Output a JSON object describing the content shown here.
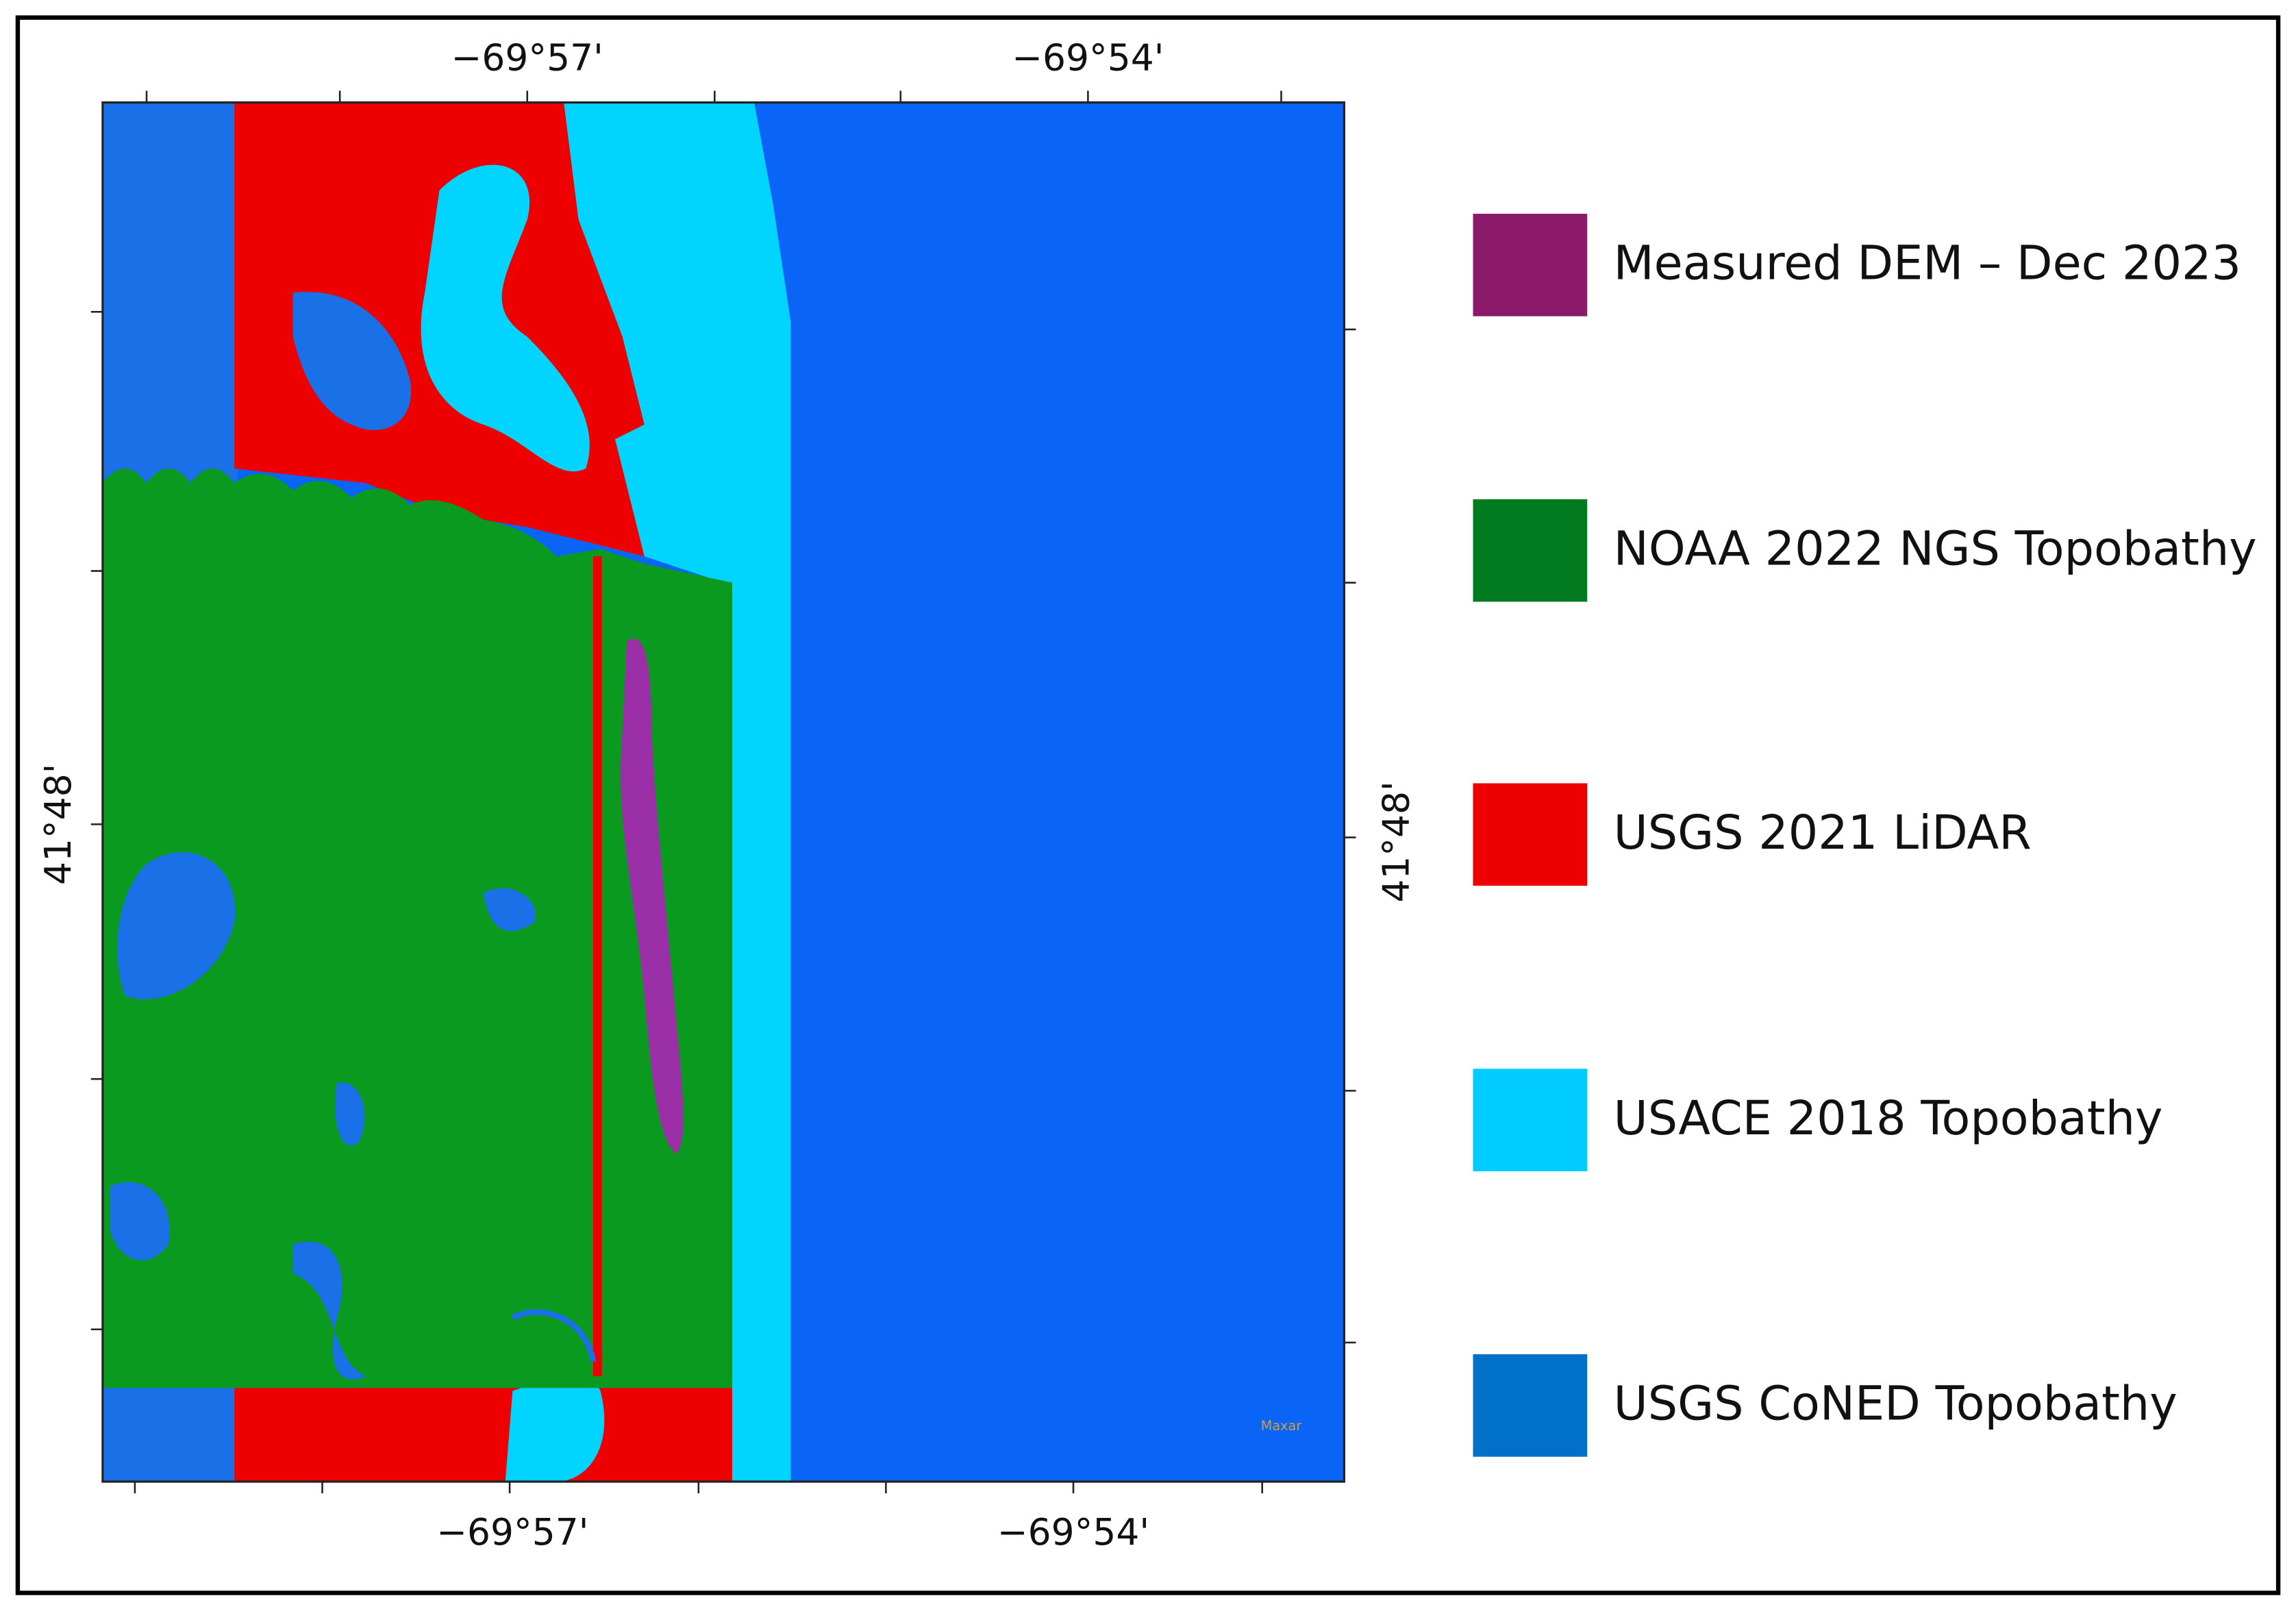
{
  "map": {
    "axis_labels": {
      "top": [
        "−69°57'",
        "−69°54'"
      ],
      "bottom": [
        "−69°57'",
        "−69°54'"
      ],
      "left": [
        "41°48'"
      ],
      "right": [
        "41°48'"
      ]
    },
    "legend": [
      {
        "name": "Measured DEM – Dec 2023",
        "color": "#8b1a6b"
      },
      {
        "name": "NOAA 2022 NGS Topobathy",
        "color": "#007a1f"
      },
      {
        "name": "USGS 2021 LiDAR",
        "color": "#ee0000"
      },
      {
        "name": "USACE 2018 Topobathy",
        "color": "#00ccff"
      },
      {
        "name": "USGS CoNED Topobathy",
        "color": "#0070c8"
      }
    ],
    "attribution": "Maxar"
  }
}
